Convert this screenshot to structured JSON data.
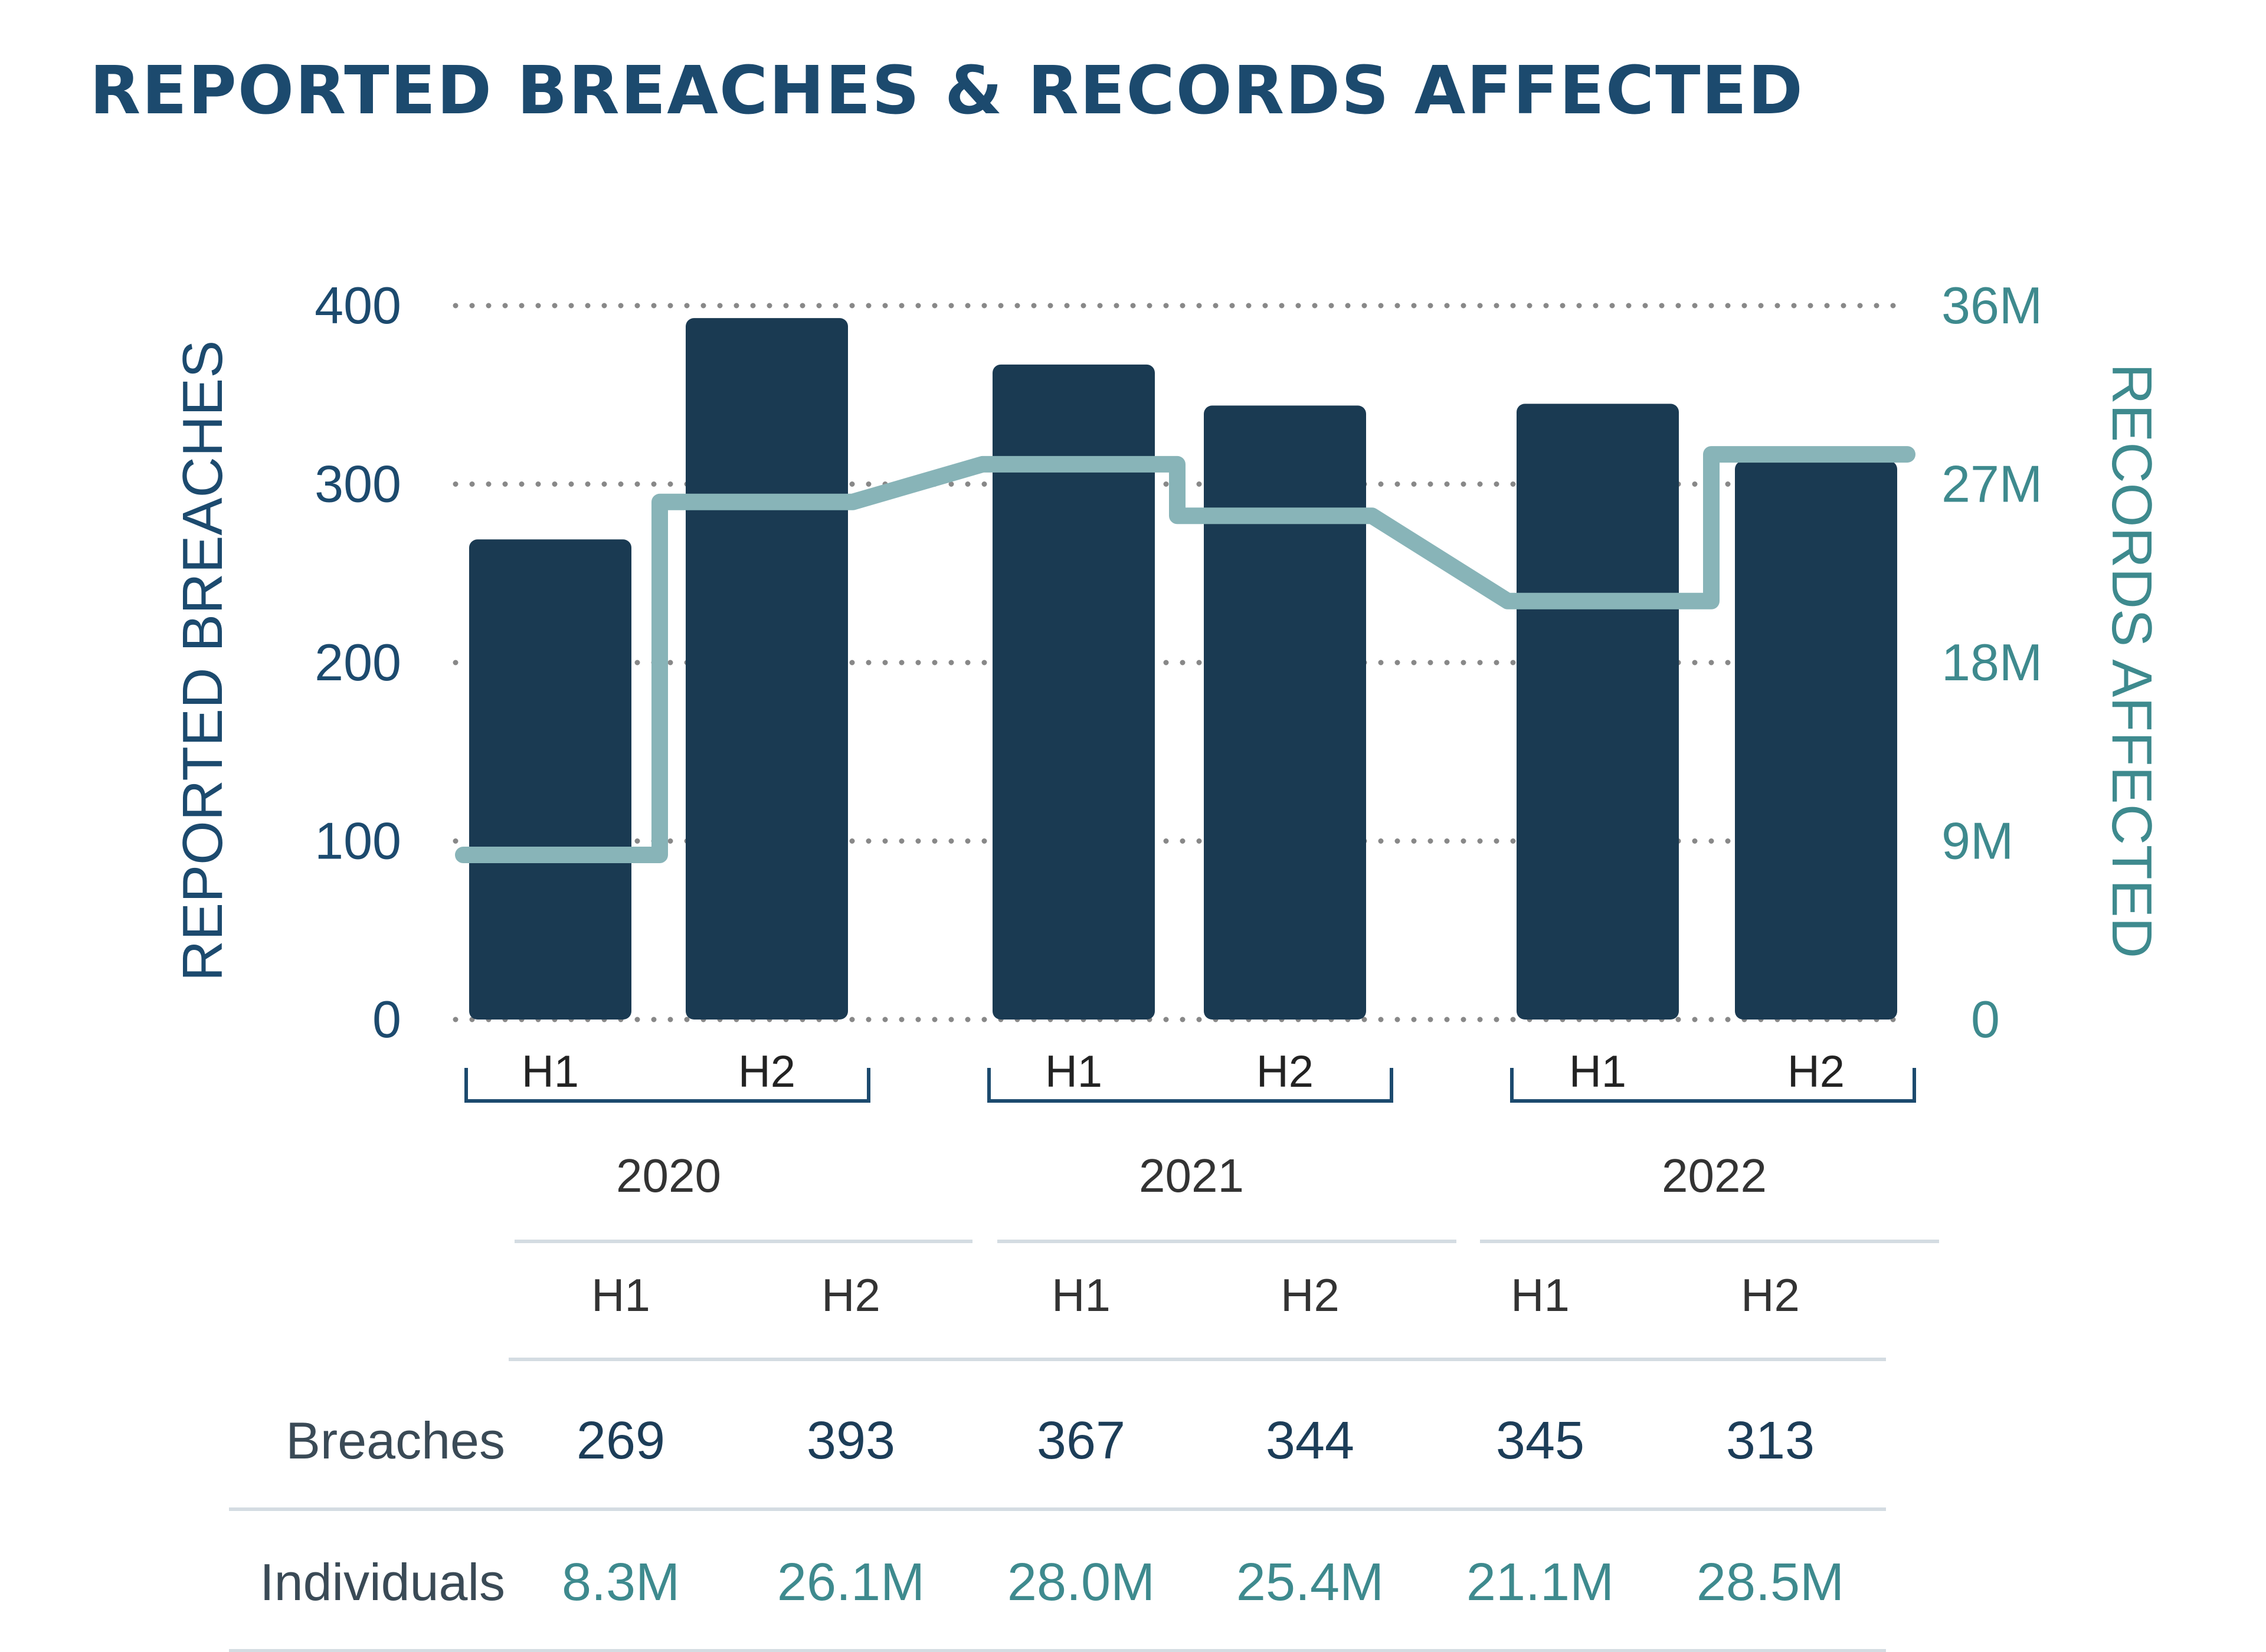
{
  "chart_data": {
    "type": "bar",
    "title": "REPORTED BREACHES & RECORDS AFFECTED",
    "ylabel": "REPORTED BREACHES",
    "y2label": "RECORDS AFFECTED",
    "ylim": [
      0,
      400
    ],
    "y2lim": [
      0,
      36
    ],
    "yticks": [
      "0",
      "100",
      "200",
      "300",
      "400"
    ],
    "y2ticks": [
      "0",
      "9M",
      "18M",
      "27M",
      "36M"
    ],
    "grid": "dotted-horizontal",
    "groups": [
      "2020",
      "2021",
      "2022"
    ],
    "categories": [
      "H1",
      "H2",
      "H1",
      "H2",
      "H1",
      "H2"
    ],
    "series": [
      {
        "name": "Breaches",
        "type": "bar",
        "axis": "left",
        "values": [
          269,
          393,
          367,
          344,
          345,
          313
        ]
      },
      {
        "name": "Individuals",
        "type": "step-line",
        "axis": "right",
        "values": [
          8.3,
          26.1,
          28.0,
          25.4,
          21.1,
          28.5
        ]
      }
    ],
    "colors": {
      "bar": "#1a3a52",
      "line": "#88b4b8",
      "title": "#1c4a6e",
      "right_axis": "#3e8a8e",
      "grid": "#888888"
    }
  },
  "table": {
    "group_labels": [
      "2020",
      "2021",
      "2022"
    ],
    "half_labels": [
      "H1",
      "H2",
      "H1",
      "H2",
      "H1",
      "H2"
    ],
    "rows": [
      {
        "label": "Breaches",
        "values": [
          "269",
          "393",
          "367",
          "344",
          "345",
          "313"
        ]
      },
      {
        "label": "Individuals",
        "values": [
          "8.3M",
          "26.1M",
          "28.0M",
          "25.4M",
          "21.1M",
          "28.5M"
        ]
      }
    ]
  }
}
